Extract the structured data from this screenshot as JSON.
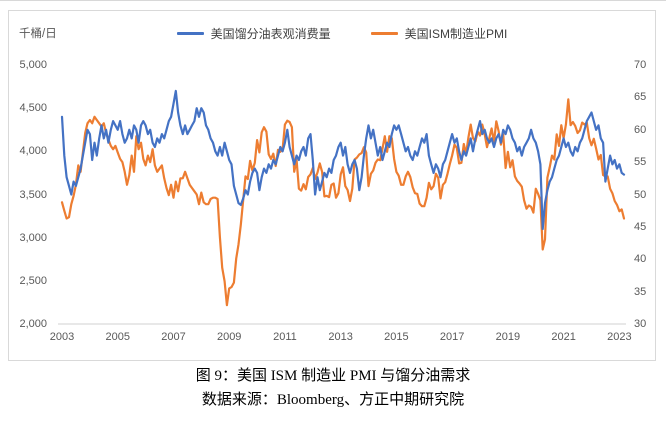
{
  "caption": {
    "title": "图 9：美国 ISM 制造业 PMI 与馏分油需求",
    "source": "数据来源：Bloomberg、方正中期研究院"
  },
  "chart_data": {
    "type": "line",
    "title": "美国 ISM 制造业 PMI 与馏分油需求",
    "grid": false,
    "legend_position": "top",
    "left_axis": {
      "title": "千桶/日",
      "min": 2000,
      "max": 5000,
      "tick_step": 500,
      "tick_labels": [
        "5,000",
        "4,500",
        "4,000",
        "3,500",
        "3,000",
        "2,500",
        "2,000"
      ]
    },
    "right_axis": {
      "min": 30,
      "max": 70,
      "tick_step": 5,
      "tick_labels": [
        "70",
        "65",
        "60",
        "55",
        "50",
        "45",
        "40",
        "35",
        "30"
      ]
    },
    "x_axis": {
      "start": "2003-01",
      "end": "2023-03",
      "frequency": "monthly",
      "tick_labels": [
        "2003",
        "2005",
        "2007",
        "2009",
        "2011",
        "2013",
        "2015",
        "2017",
        "2019",
        "2021",
        "2023"
      ]
    },
    "series": [
      {
        "name": "美国馏分油表观消费量",
        "axis": "left",
        "unit": "千桶/日",
        "color": "#4472C4",
        "values": [
          4400,
          3950,
          3700,
          3600,
          3500,
          3650,
          3600,
          3700,
          3800,
          3950,
          4100,
          4250,
          4200,
          3900,
          4100,
          3950,
          4150,
          4300,
          4150,
          4250,
          4100,
          4250,
          4350,
          4300,
          4250,
          4350,
          4200,
          4100,
          4150,
          4250,
          4150,
          4300,
          4250,
          4100,
          4300,
          4350,
          4300,
          4200,
          4250,
          4100,
          4050,
          4150,
          4100,
          4200,
          4150,
          4250,
          4350,
          4400,
          4550,
          4700,
          4450,
          4300,
          4200,
          4300,
          4200,
          4250,
          4300,
          4350,
          4500,
          4400,
          4500,
          4450,
          4300,
          4250,
          4150,
          4100,
          4000,
          3950,
          4050,
          3950,
          4100,
          4000,
          3900,
          3850,
          3600,
          3500,
          3400,
          3380,
          3450,
          3550,
          3500,
          3650,
          3750,
          3800,
          3750,
          3550,
          3700,
          3800,
          3750,
          3850,
          3800,
          3900,
          3850,
          3950,
          4050,
          4000,
          4100,
          4250,
          4050,
          3950,
          3850,
          3950,
          3900,
          4000,
          4050,
          3950,
          4150,
          4200,
          3900,
          3500,
          3700,
          3550,
          3650,
          3750,
          3700,
          3800,
          3750,
          3900,
          3950,
          4050,
          4100,
          3950,
          4050,
          3850,
          3750,
          3850,
          3900,
          3800,
          3550,
          3700,
          3950,
          4150,
          4300,
          4150,
          4250,
          4100,
          3950,
          4050,
          3900,
          4000,
          4100,
          4050,
          4200,
          4300,
          4250,
          4300,
          4200,
          4100,
          4000,
          4050,
          3950,
          3900,
          4000,
          3950,
          4050,
          4150,
          4100,
          4200,
          3950,
          3850,
          3750,
          3850,
          3800,
          3700,
          3850,
          3900,
          4000,
          4100,
          4200,
          4100,
          4150,
          4000,
          3900,
          4000,
          3950,
          4050,
          4150,
          4000,
          4150,
          4250,
          4350,
          4200,
          4250,
          4150,
          4100,
          4150,
          4050,
          4150,
          4200,
          4100,
          4250,
          4200,
          4300,
          4250,
          4150,
          4100,
          4000,
          4050,
          3950,
          4050,
          4100,
          4150,
          4250,
          4150,
          4100,
          4000,
          3850,
          3100,
          3400,
          3550,
          3650,
          3700,
          3800,
          3900,
          3950,
          4050,
          4150,
          4050,
          4100,
          4000,
          3950,
          4050,
          4000,
          4100,
          4150,
          4250,
          4350,
          4400,
          4450,
          4350,
          4250,
          4300,
          4150,
          4100,
          3650,
          3800,
          3950,
          3850,
          3900,
          3800,
          3850,
          3750,
          3730
        ]
      },
      {
        "name": "美国ISM制造业PMI",
        "axis": "right",
        "unit": "",
        "color": "#ED7D31",
        "values": [
          48.8,
          47.5,
          46.3,
          46.5,
          48.5,
          49.8,
          51.5,
          54.5,
          53.5,
          56.5,
          59.5,
          61.0,
          61.5,
          61.0,
          62.0,
          61.5,
          61.0,
          60.5,
          61.0,
          59.5,
          58.5,
          57.5,
          57.0,
          57.5,
          56.5,
          55.5,
          55.0,
          53.5,
          51.5,
          53.0,
          56.0,
          53.5,
          59.0,
          57.0,
          58.0,
          55.5,
          54.5,
          56.0,
          55.0,
          57.0,
          54.5,
          53.5,
          54.0,
          54.5,
          52.5,
          51.0,
          49.9,
          51.5,
          49.5,
          52.0,
          50.5,
          52.5,
          52.5,
          53.5,
          52.5,
          51.5,
          51.0,
          50.5,
          50.0,
          48.5,
          50.3,
          48.8,
          48.5,
          48.5,
          49.3,
          49.5,
          49.5,
          49.3,
          43.4,
          38.7,
          36.6,
          32.9,
          35.5,
          35.7,
          36.4,
          40.1,
          42.3,
          45.3,
          49.0,
          52.8,
          52.4,
          55.2,
          53.7,
          54.9,
          58.4,
          56.5,
          59.6,
          60.4,
          59.7,
          56.2,
          55.5,
          56.3,
          54.4,
          56.9,
          56.6,
          57.0,
          60.8,
          61.4,
          61.2,
          60.4,
          53.5,
          55.3,
          50.9,
          50.6,
          51.6,
          50.8,
          52.7,
          53.1,
          54.1,
          52.4,
          53.4,
          54.8,
          53.5,
          49.7,
          49.8,
          49.6,
          51.5,
          51.7,
          49.5,
          50.2,
          53.1,
          54.2,
          51.3,
          50.7,
          49.0,
          50.9,
          55.4,
          55.7,
          56.2,
          56.4,
          57.3,
          56.5,
          51.3,
          53.2,
          53.7,
          54.9,
          55.4,
          55.3,
          57.1,
          59.0,
          56.6,
          59.0,
          58.7,
          55.5,
          53.5,
          52.9,
          51.5,
          51.5,
          52.8,
          53.5,
          52.7,
          51.1,
          50.2,
          50.1,
          48.6,
          48.2,
          48.2,
          49.5,
          51.8,
          50.8,
          51.3,
          53.2,
          52.6,
          49.4,
          51.5,
          51.9,
          53.2,
          54.7,
          56.0,
          57.7,
          57.2,
          54.8,
          54.9,
          57.8,
          56.3,
          58.8,
          60.8,
          58.7,
          58.2,
          59.7,
          59.1,
          60.8,
          59.3,
          57.3,
          58.7,
          60.2,
          58.1,
          61.3,
          59.8,
          57.7,
          59.3,
          54.1,
          56.6,
          54.2,
          55.3,
          52.8,
          52.1,
          51.7,
          51.2,
          49.1,
          47.8,
          48.3,
          48.1,
          47.2,
          50.9,
          50.1,
          49.1,
          41.5,
          43.1,
          52.6,
          54.2,
          56.0,
          55.4,
          59.3,
          57.5,
          60.7,
          58.7,
          60.8,
          64.7,
          60.7,
          61.2,
          60.6,
          59.5,
          59.9,
          61.1,
          60.8,
          61.1,
          58.7,
          57.6,
          58.6,
          57.1,
          55.4,
          56.1,
          53.0,
          52.8,
          52.8,
          50.9,
          50.2,
          49.0,
          48.4,
          47.4,
          47.7,
          46.3
        ]
      }
    ]
  }
}
